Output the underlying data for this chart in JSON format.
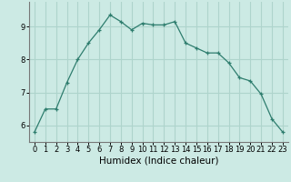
{
  "x": [
    0,
    1,
    2,
    3,
    4,
    5,
    6,
    7,
    8,
    9,
    10,
    11,
    12,
    13,
    14,
    15,
    16,
    17,
    18,
    19,
    20,
    21,
    22,
    23
  ],
  "y": [
    5.8,
    6.5,
    6.5,
    7.3,
    8.0,
    8.5,
    8.9,
    9.35,
    9.15,
    8.9,
    9.1,
    9.05,
    9.05,
    9.15,
    8.5,
    8.35,
    8.2,
    8.2,
    7.9,
    7.45,
    7.35,
    6.95,
    6.2,
    5.8
  ],
  "xlabel": "Humidex (Indice chaleur)",
  "ylim": [
    5.5,
    9.75
  ],
  "xlim": [
    -0.5,
    23.5
  ],
  "yticks": [
    6,
    7,
    8,
    9
  ],
  "xticks": [
    0,
    1,
    2,
    3,
    4,
    5,
    6,
    7,
    8,
    9,
    10,
    11,
    12,
    13,
    14,
    15,
    16,
    17,
    18,
    19,
    20,
    21,
    22,
    23
  ],
  "line_color": "#2e7d6e",
  "marker": "+",
  "bg_color": "#cceae4",
  "grid_color": "#aed4cc",
  "tick_fontsize": 6.0,
  "xlabel_fontsize": 7.5
}
